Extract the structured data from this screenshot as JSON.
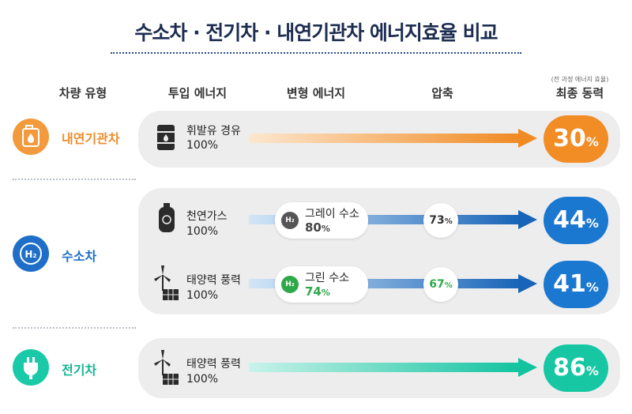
{
  "title": "수소차 · 전기차 · 내연기관차 에너지효율 비교",
  "headers": {
    "vehicle_type": "차량 유형",
    "input_energy": "투입 에너지",
    "converted_energy": "변형 에너지",
    "compression": "압축",
    "final_power_note": "(전 과정 에너지 효율)",
    "final_power": "최종 동력"
  },
  "colors": {
    "ice": "#ef8c2c",
    "hydrogen": "#1f6fc8",
    "electric": "#16c9a6",
    "gray_hydrogen": "#555555",
    "green_hydrogen": "#2fa84a"
  },
  "rows": {
    "ice": {
      "vehicle": "내연기관차",
      "vehicle_icon": "fuel-can-icon",
      "source_icon": "oil-barrel-icon",
      "source": "휘발유 경유",
      "source_pct": "100%",
      "final_value": "30",
      "final_unit": "%"
    },
    "hydrogen": {
      "vehicle": "수소차",
      "vehicle_icon": "h2-icon",
      "gray": {
        "source_icon": "gas-cylinder-icon",
        "source": "천연가스",
        "source_pct": "100%",
        "hydrogen_badge": "H₂",
        "hydrogen_label": "그레이 수소",
        "hydrogen_pct": "80",
        "compression_value": "73",
        "final_value": "44",
        "final_unit": "%"
      },
      "green": {
        "source_icon": "wind-solar-icon",
        "source": "태양력 풍력",
        "source_pct": "100%",
        "hydrogen_badge": "H₂",
        "hydrogen_label": "그린 수소",
        "hydrogen_pct": "74",
        "compression_value": "67",
        "final_value": "41",
        "final_unit": "%"
      }
    },
    "electric": {
      "vehicle": "전기차",
      "vehicle_icon": "plug-icon",
      "source_icon": "wind-solar-icon",
      "source": "태양력 풍력",
      "source_pct": "100%",
      "final_value": "86",
      "final_unit": "%"
    }
  },
  "pct_sign": "%"
}
